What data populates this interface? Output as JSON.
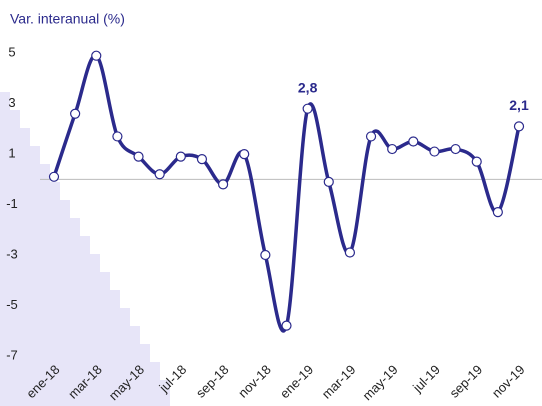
{
  "chart_data": {
    "type": "line",
    "y_label": "Var. interanual (%)",
    "categories": [
      "ene-18",
      null,
      "mar-18",
      null,
      "may-18",
      null,
      "jul-18",
      null,
      "sep-18",
      null,
      "nov-18",
      null,
      "ene-19",
      null,
      "mar-19",
      null,
      "may-19",
      null,
      "jul-19",
      null,
      "sep-19",
      null,
      "nov-19"
    ],
    "values": [
      0.1,
      2.6,
      4.9,
      1.7,
      0.9,
      0.2,
      0.9,
      0.8,
      -0.2,
      1.0,
      -3.0,
      -5.8,
      2.8,
      -0.1,
      -2.9,
      1.7,
      1.2,
      1.5,
      1.1,
      1.2,
      0.7,
      -1.3,
      2.1
    ],
    "value_labels": [
      null,
      null,
      null,
      null,
      null,
      null,
      null,
      null,
      null,
      null,
      null,
      null,
      "2,8",
      null,
      null,
      null,
      null,
      null,
      null,
      null,
      null,
      null,
      "2,1"
    ],
    "color": "#2b2a8c",
    "ylim": [
      -7.4,
      5.8
    ],
    "yticks": [
      5,
      3,
      1,
      -1,
      -3,
      -5,
      -7
    ]
  }
}
